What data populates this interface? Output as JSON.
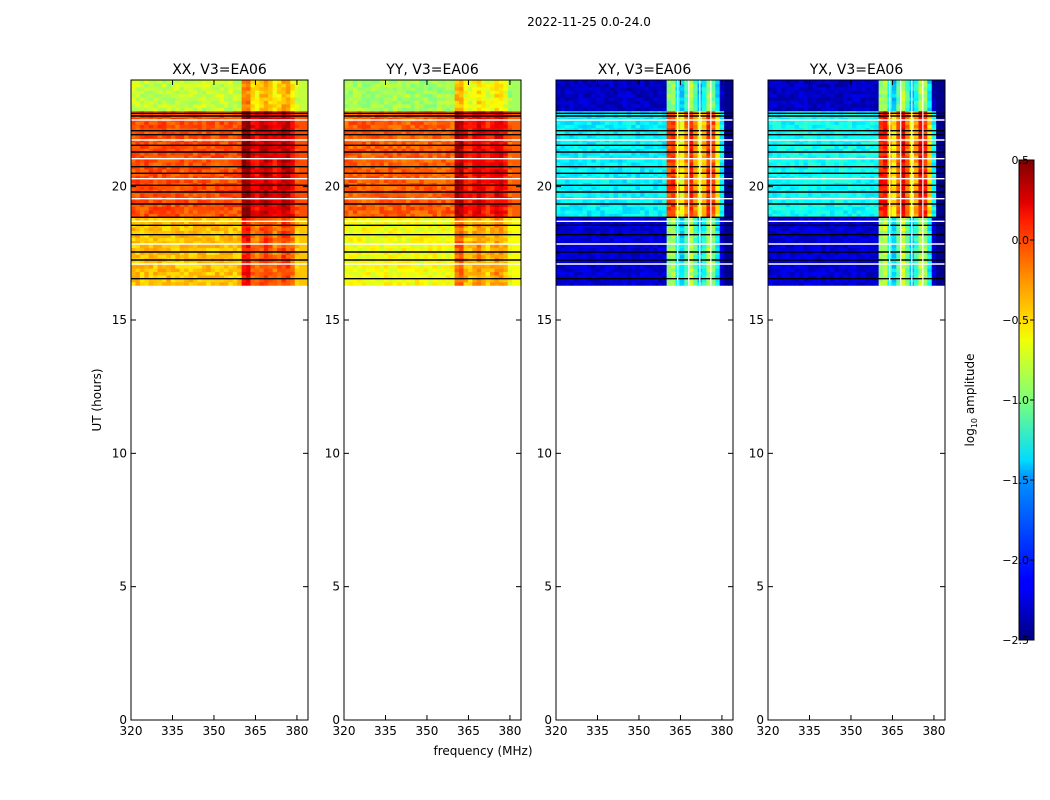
{
  "figure": {
    "suptitle": "2022-11-25 0.0-24.0",
    "xlabel": "frequency (MHz)",
    "ylabel": "UT (hours)"
  },
  "chart_data": {
    "type": "heatmap",
    "colormap": "jet",
    "x_ticks": [
      320,
      335,
      350,
      365,
      380
    ],
    "x_range": [
      320,
      384
    ],
    "y_ticks": [
      0,
      5,
      10,
      15,
      20
    ],
    "y_range": [
      0,
      24
    ],
    "data_time_range": [
      16.3,
      24
    ],
    "colorbar": {
      "label_main": "log",
      "label_sub": "10",
      "label_rest": " amplitude",
      "ticks": [
        "0.5",
        "0.0",
        "−0.5",
        "−1.0",
        "−1.5",
        "−2.0",
        "−2.5"
      ],
      "range": [
        -2.5,
        0.5
      ]
    },
    "panels": [
      {
        "title": "XX, V3=EA06",
        "kind": "auto",
        "base_upper": -0.8,
        "base_lower": -0.1,
        "base_low_band": -0.45,
        "rfi_strength": 0.35
      },
      {
        "title": "YY, V3=EA06",
        "kind": "auto",
        "base_upper": -0.9,
        "base_lower": -0.15,
        "base_low_band": -0.65,
        "rfi_strength": 0.3
      },
      {
        "title": "XY, V3=EA06",
        "kind": "cross",
        "base_upper": -2.3,
        "base_lower": -1.4,
        "base_low_band": -2.25,
        "rfi_strength": 1.2
      },
      {
        "title": "YX, V3=EA06",
        "kind": "cross",
        "base_upper": -2.3,
        "base_lower": -1.35,
        "base_low_band": -2.25,
        "rfi_strength": 1.25
      }
    ],
    "flag_lines_ut": [
      16.55,
      17.1,
      17.25,
      17.55,
      17.85,
      18.2,
      18.55,
      18.7,
      18.85,
      19.35,
      19.55,
      19.8,
      20.05,
      20.3,
      20.5,
      20.75,
      21.05,
      21.3,
      21.55,
      21.75,
      21.95,
      22.1,
      22.5,
      22.65,
      22.75
    ]
  }
}
